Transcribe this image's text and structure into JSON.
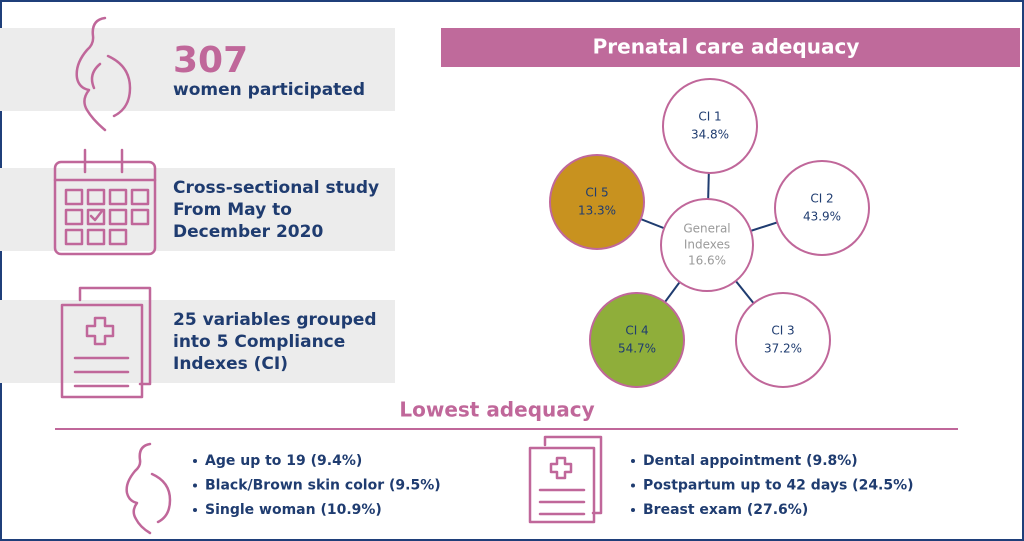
{
  "stats": [
    {
      "number": "307",
      "lines": [
        "women participated"
      ]
    },
    {
      "lines": [
        "Cross-sectional study",
        "From May to",
        "December 2020"
      ]
    },
    {
      "lines": [
        "25 variables grouped",
        "into 5 Compliance",
        "Indexes (CI)"
      ]
    }
  ],
  "prenatal": {
    "title": "Prenatal care adequacy",
    "center": {
      "lines": [
        "General",
        "Indexes"
      ],
      "value": "16.6%"
    },
    "nodes": [
      {
        "label": "CI 1",
        "value": "34.8%"
      },
      {
        "label": "CI 2",
        "value": "43.9%"
      },
      {
        "label": "CI 3",
        "value": "37.2%"
      },
      {
        "label": "CI 4",
        "value": "54.7%"
      },
      {
        "label": "CI 5",
        "value": "13.3%"
      }
    ]
  },
  "lowest": {
    "title": "Lowest adequacy",
    "left": [
      "Age up to 19 (9.4%)",
      "Black/Brown skin color (9.5%)",
      "Single woman (10.9%)"
    ],
    "right": [
      "Dental appointment (9.8%)",
      "Postpartum up to 42 days (24.5%)",
      "Breast exam (27.6%)"
    ]
  }
}
